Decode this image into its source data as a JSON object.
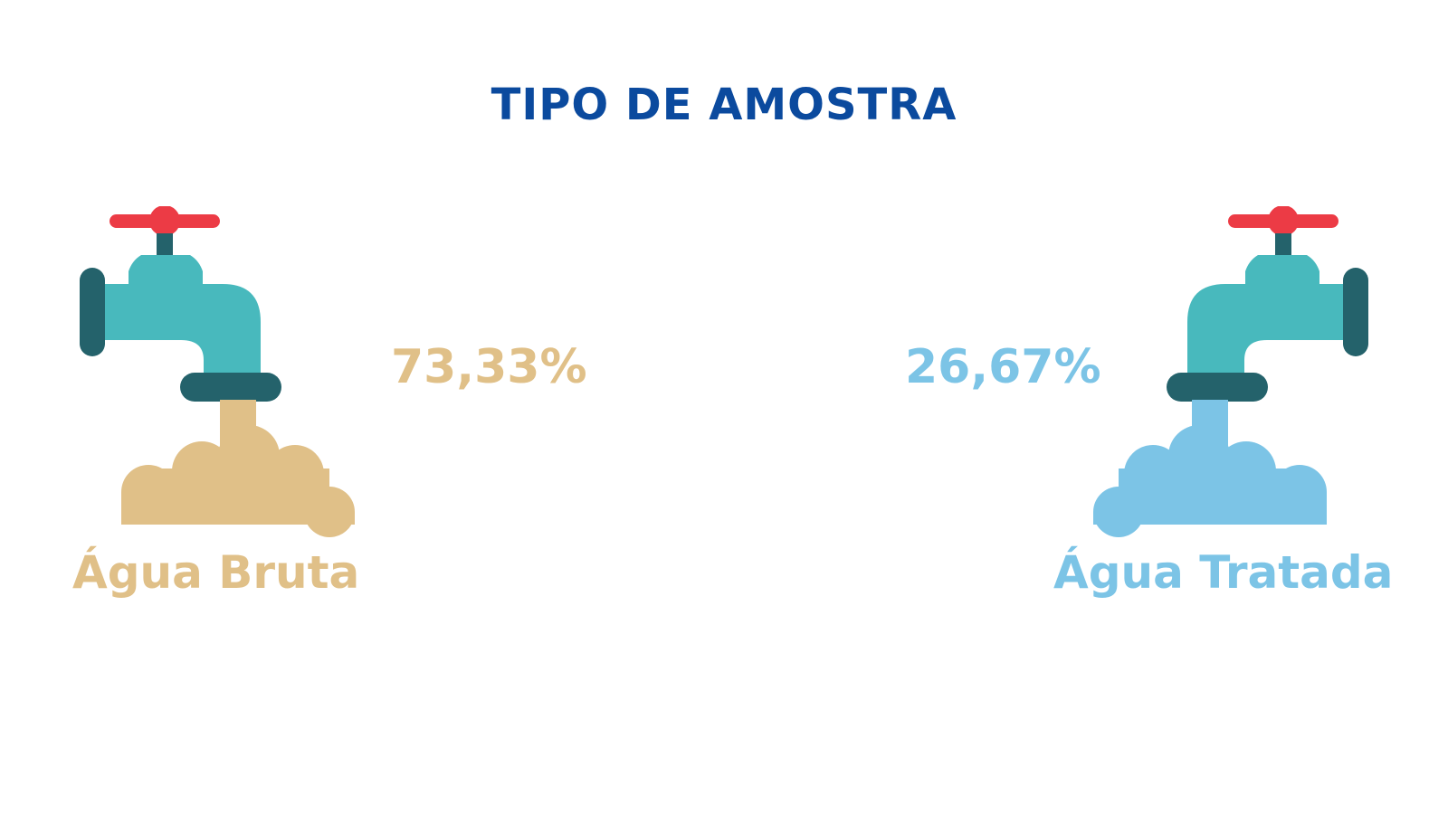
{
  "title": "TIPO DE AMOSTRA",
  "samples": [
    {
      "label": "Água Bruta",
      "percent_text": "73,33%",
      "value": 73.33,
      "color": "#e0c088",
      "icon": "faucet-icon"
    },
    {
      "label": "Água Tratada",
      "percent_text": "26,67%",
      "value": 26.67,
      "color": "#7cc4e6",
      "icon": "faucet-icon"
    }
  ],
  "colors": {
    "title": "#0b4a9e",
    "faucet_body": "#48b9bd",
    "faucet_dark": "#24626b",
    "valve_handle": "#ec3b45"
  }
}
